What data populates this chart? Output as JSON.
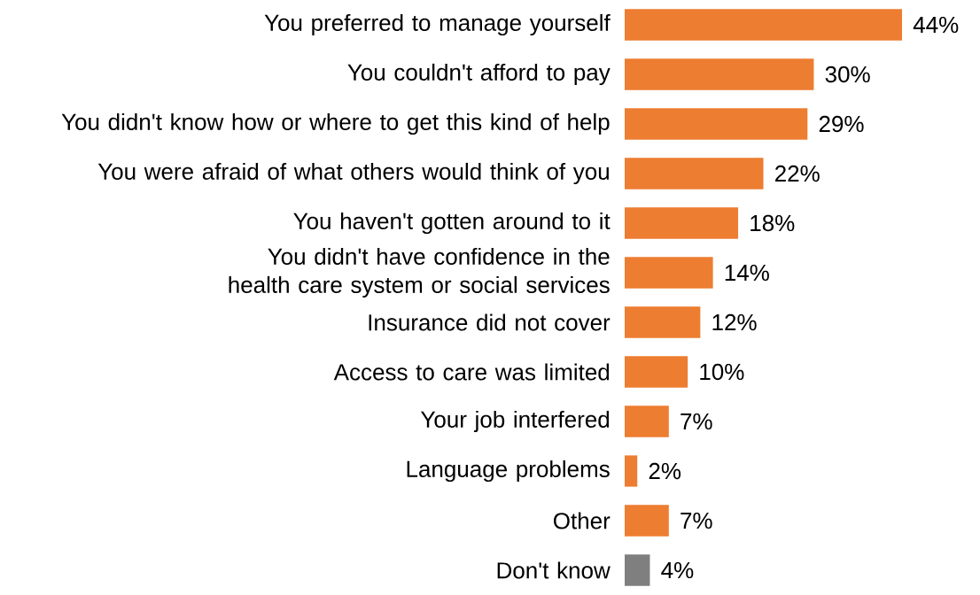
{
  "chart_data": {
    "type": "bar",
    "orientation": "horizontal",
    "categories": [
      "You preferred to manage yourself",
      "You couldn't afford to pay",
      "You didn't know how or where to get this kind of help",
      "You were afraid of what others would think of you",
      "You haven't gotten around to it",
      "You didn't have confidence in the health care system or social services",
      "Insurance did not cover",
      "Access to care was limited",
      "Your job interfered",
      "Language problems",
      "Other",
      "Don't know"
    ],
    "values": [
      44,
      30,
      29,
      22,
      18,
      14,
      12,
      10,
      7,
      2,
      7,
      4
    ],
    "colors": [
      "#ed7d31",
      "#ed7d31",
      "#ed7d31",
      "#ed7d31",
      "#ed7d31",
      "#ed7d31",
      "#ed7d31",
      "#ed7d31",
      "#ed7d31",
      "#ed7d31",
      "#ed7d31",
      "#7f7f7f"
    ],
    "value_labels": [
      "44%",
      "30%",
      "29%",
      "22%",
      "18%",
      "14%",
      "12%",
      "10%",
      "7%",
      "2%",
      "7%",
      "4%"
    ],
    "data_labels": false
  }
}
